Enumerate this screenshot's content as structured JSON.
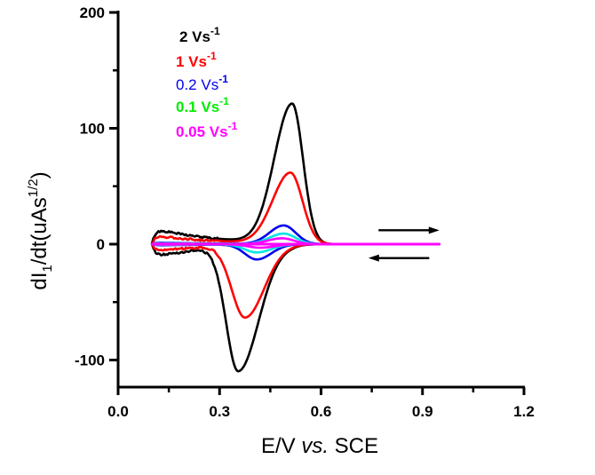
{
  "chart_data": {
    "type": "line",
    "title": "",
    "xlabel": {
      "prefix": "E/V ",
      "italic": "vs.",
      "suffix": " SCE"
    },
    "ylabel": {
      "main": "dI",
      "sub": "1",
      "mid": "/dt(uAs",
      "sup": "1/2",
      "end": ")"
    },
    "xlim": [
      0.0,
      1.2
    ],
    "ylim": [
      -125,
      200
    ],
    "x_ticks": [
      {
        "value": 0.0,
        "label": "0.0"
      },
      {
        "value": 0.3,
        "label": "0.3"
      },
      {
        "value": 0.6,
        "label": "0.6"
      },
      {
        "value": 0.9,
        "label": "0.9"
      },
      {
        "value": 1.2,
        "label": "1.2"
      }
    ],
    "x_minor_ticks": [
      0.15,
      0.45,
      0.75,
      1.05
    ],
    "y_ticks": [
      {
        "value": 200,
        "label": "200"
      },
      {
        "value": 100,
        "label": "100"
      },
      {
        "value": 0,
        "label": "0"
      },
      {
        "value": -100,
        "label": "-100"
      }
    ],
    "y_minor_ticks": [
      150,
      50,
      -50
    ],
    "grid": false,
    "legend_position": "top-left",
    "scan_range": [
      0.1,
      0.95
    ],
    "series": [
      {
        "name": "2 Vs",
        "unit_sup": "-1",
        "color": "#000000",
        "legend_bold": true,
        "oxidation_peak": {
          "x": 0.515,
          "y": 120
        },
        "reduction_peak": {
          "x": 0.355,
          "y": -107
        },
        "ox_width_left": 0.075,
        "ox_width_right": 0.045,
        "red_width_left": 0.05,
        "red_width_right": 0.085,
        "tail": 14,
        "noisy": true
      },
      {
        "name": "1 Vs",
        "unit_sup": "-1",
        "color": "#ff0000",
        "legend_bold": true,
        "oxidation_peak": {
          "x": 0.51,
          "y": 61
        },
        "reduction_peak": {
          "x": 0.375,
          "y": -62
        },
        "ox_width_left": 0.075,
        "ox_width_right": 0.05,
        "red_width_left": 0.055,
        "red_width_right": 0.08,
        "tail": 8,
        "noisy": true
      },
      {
        "name": "0.2 Vs",
        "unit_sup": "-1",
        "color": "#0000ee",
        "legend_bold": false,
        "oxidation_peak": {
          "x": 0.49,
          "y": 16
        },
        "reduction_peak": {
          "x": 0.41,
          "y": -13
        },
        "ox_width_left": 0.06,
        "ox_width_right": 0.05,
        "red_width_left": 0.05,
        "red_width_right": 0.06,
        "tail": 1.5,
        "noisy": false
      },
      {
        "name": "0.1 Vs",
        "unit_sup": "-1",
        "color": "#00ee00",
        "legend_bold": true,
        "oxidation_peak": {
          "x": 0.49,
          "y": 9
        },
        "reduction_peak": {
          "x": 0.41,
          "y": -7
        },
        "ox_width_left": 0.06,
        "ox_width_right": 0.05,
        "red_width_left": 0.05,
        "red_width_right": 0.06,
        "tail": 1,
        "noisy": false,
        "line_color": "#00e5e5"
      },
      {
        "name": "0.05 Vs",
        "unit_sup": "-1",
        "color": "#ff00ff",
        "legend_bold": true,
        "oxidation_peak": {
          "x": 0.485,
          "y": 5
        },
        "reduction_peak": {
          "x": 0.42,
          "y": -3
        },
        "ox_width_left": 0.06,
        "ox_width_right": 0.05,
        "red_width_left": 0.05,
        "red_width_right": 0.06,
        "tail": 0.5,
        "noisy": false
      }
    ],
    "annotations": [
      {
        "type": "arrow",
        "direction": "right",
        "x_from": 0.77,
        "x_to": 0.95,
        "y": 12
      },
      {
        "type": "arrow",
        "direction": "left",
        "x_from": 0.92,
        "x_to": 0.74,
        "y": -12
      }
    ]
  }
}
